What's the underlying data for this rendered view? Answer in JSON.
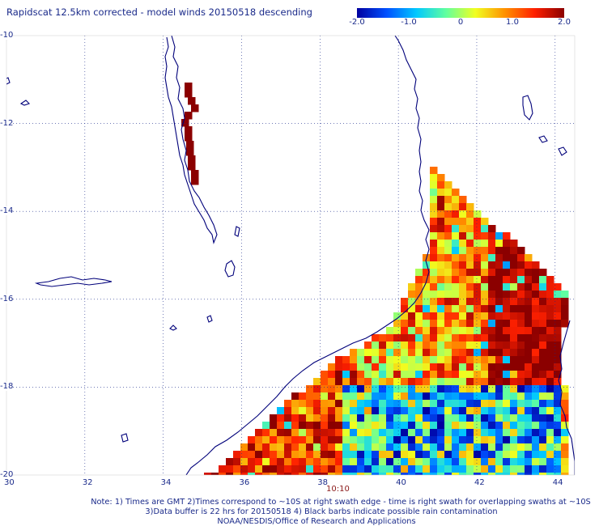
{
  "title": "Rapidscat 12.5km corrected - model winds 20150518 descending",
  "colorbar": {
    "min": -2.0,
    "max": 2.0,
    "tick_labels": [
      "-2.0",
      "-1.0",
      "0",
      "1.0",
      "2.0"
    ],
    "tick_values": [
      -2.0,
      -1.0,
      0.0,
      1.0,
      2.0
    ],
    "stops": [
      "#0000a0",
      "#0050ff",
      "#00c8ff",
      "#60ffa0",
      "#f0ff20",
      "#ff9000",
      "#ff2000",
      "#8b0000"
    ]
  },
  "map": {
    "lon_range": [
      30,
      44.5
    ],
    "lat_range": [
      -20,
      -10
    ],
    "lon_ticks": [
      "30",
      "32",
      "34",
      "36",
      "38",
      "40",
      "42",
      "44"
    ],
    "lat_ticks": [
      "-10",
      "-12",
      "-14",
      "-16",
      "-18",
      "-20"
    ],
    "grid_style": "dotted",
    "coastline_color": "#00007a"
  },
  "swath_time": "10:10",
  "notes": [
    "Note: 1) Times are GMT 2)Times correspond to ~10S at right swath edge - time is right swath for overlapping swaths at ~10S",
    "3)Data buffer is 22 hrs for 20150518 4) Black barbs indicate possible rain contamination",
    "NOAA/NESDIS/Office of Research and Applications"
  ]
}
